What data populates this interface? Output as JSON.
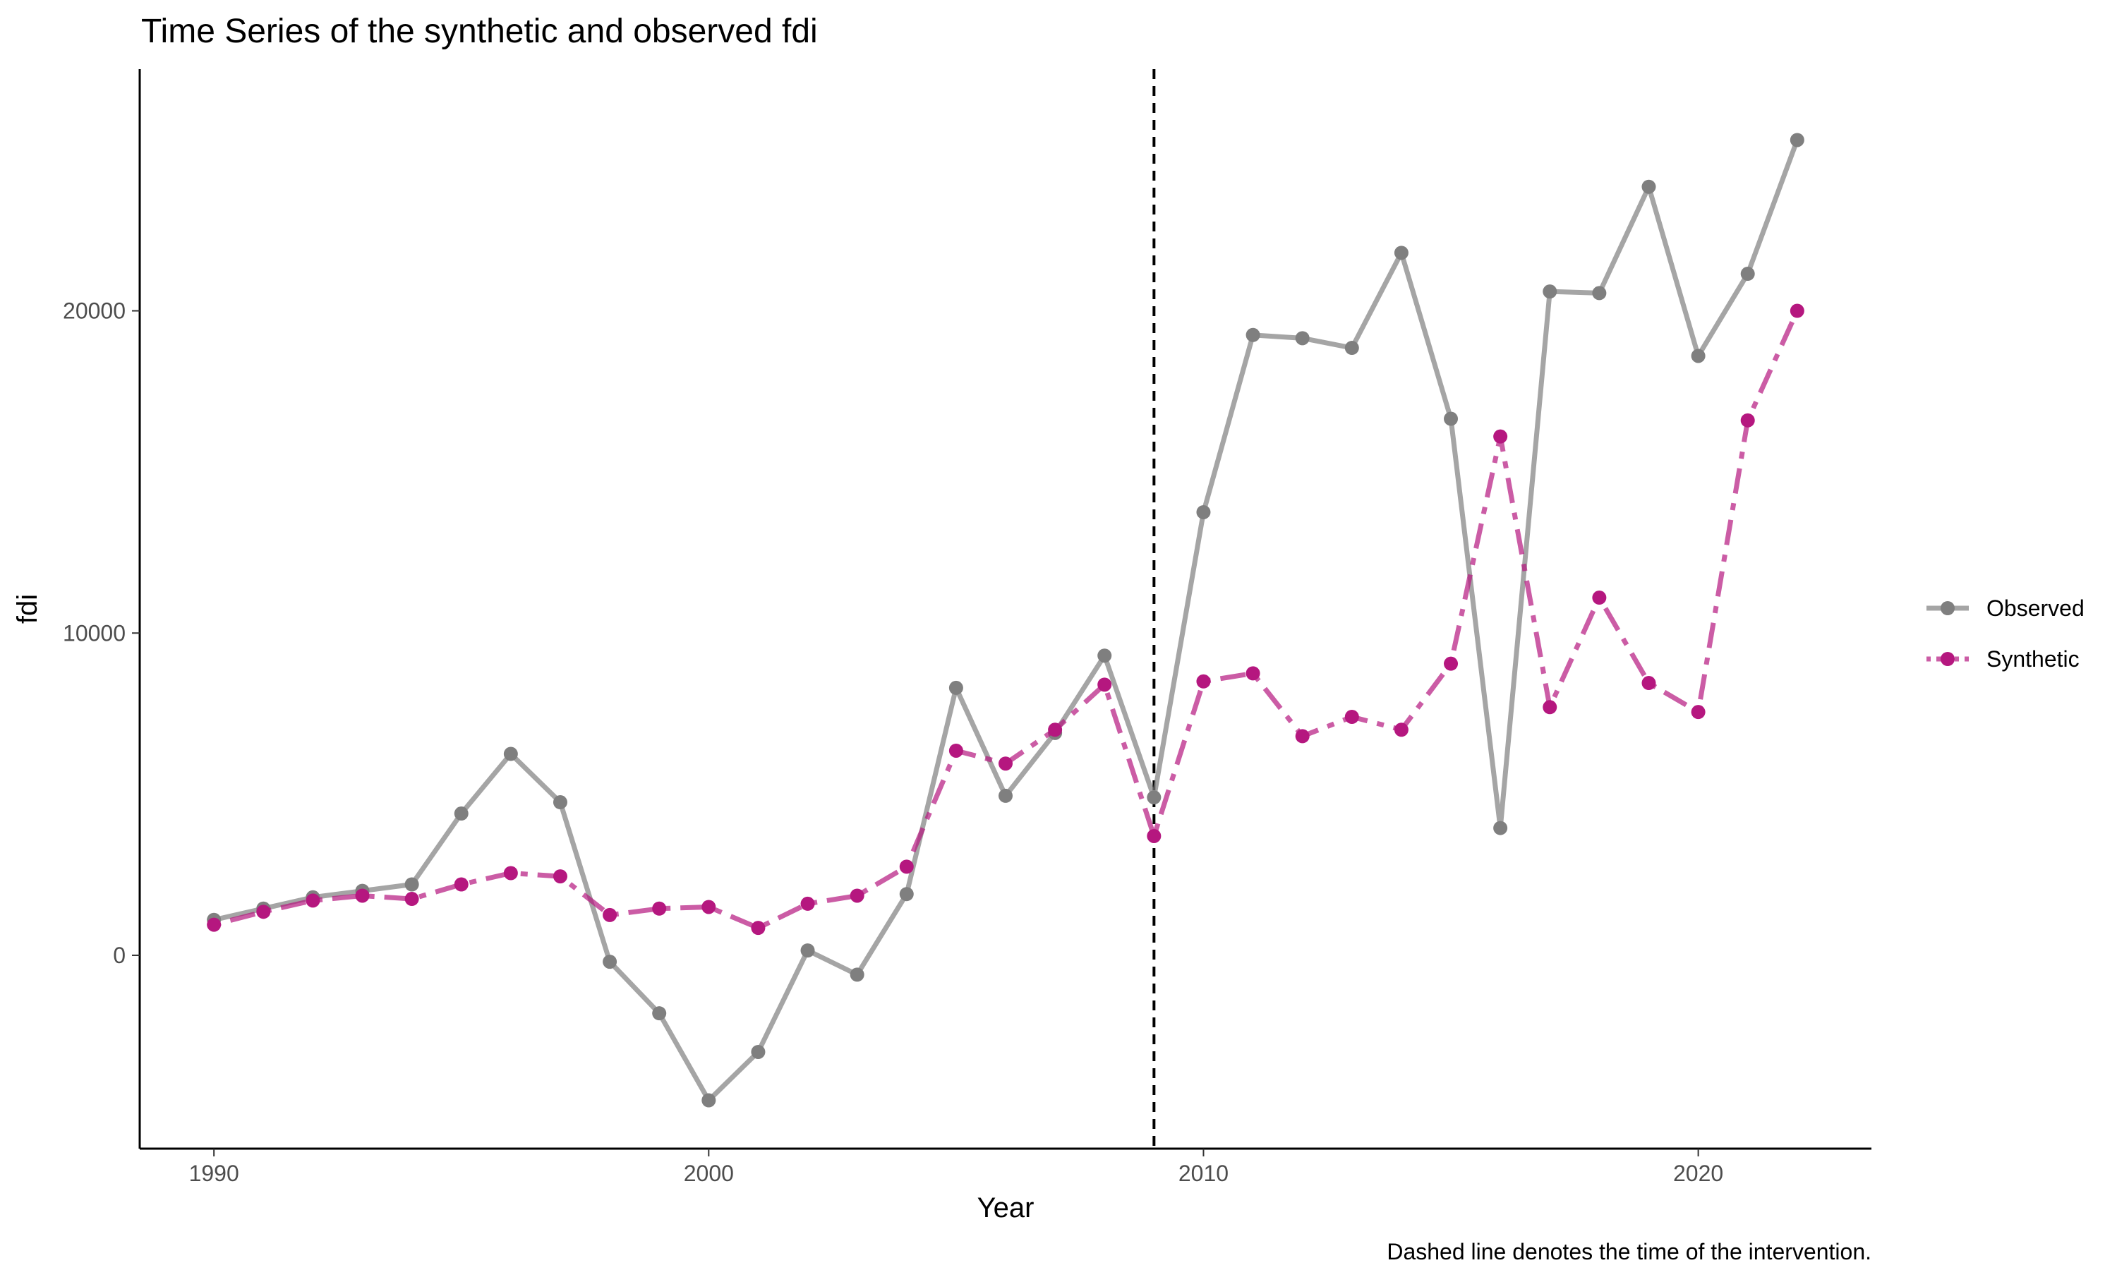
{
  "chart_data": {
    "type": "line",
    "title": "Time Series of the synthetic and observed fdi",
    "xlabel": "Year",
    "ylabel": "fdi",
    "caption": "Dashed line denotes the time of the intervention.",
    "xlim": [
      1988.5,
      2023.5
    ],
    "ylim": [
      -6000,
      27500
    ],
    "x_ticks": [
      1990,
      2000,
      2010,
      2020
    ],
    "y_ticks": [
      0,
      10000,
      20000
    ],
    "x_tick_labels": [
      "1990",
      "2000",
      "2010",
      "2020"
    ],
    "y_tick_labels": [
      "0",
      "10000",
      "20000"
    ],
    "intervention_year": 2009,
    "grid": false,
    "legend_position": "right",
    "x": [
      1990,
      1991,
      1992,
      1993,
      1994,
      1995,
      1996,
      1997,
      1998,
      1999,
      2000,
      2001,
      2002,
      2003,
      2004,
      2005,
      2006,
      2007,
      2008,
      2009,
      2010,
      2011,
      2012,
      2013,
      2014,
      2015,
      2016,
      2017,
      2018,
      2019,
      2020,
      2021,
      2022
    ],
    "series": [
      {
        "name": "Observed",
        "color": "#7f7f7f",
        "line_style": "solid",
        "values": [
          1100,
          1450,
          1800,
          2000,
          2200,
          4400,
          6250,
          4750,
          -200,
          -1800,
          -4500,
          -3000,
          150,
          -600,
          1900,
          8300,
          4950,
          6900,
          9300,
          4900,
          13750,
          19250,
          19150,
          18850,
          21800,
          16650,
          3950,
          20600,
          20550,
          23850,
          18600,
          21150,
          25300
        ]
      },
      {
        "name": "Synthetic",
        "color": "#b5177f",
        "line_style": "dashdot",
        "values": [
          950,
          1350,
          1700,
          1850,
          1750,
          2200,
          2550,
          2450,
          1250,
          1450,
          1500,
          850,
          1600,
          1850,
          2750,
          6350,
          5950,
          7000,
          8400,
          3700,
          8500,
          8750,
          6800,
          7400,
          7000,
          9050,
          16100,
          7700,
          11100,
          8450,
          7550,
          16600,
          20000
        ]
      }
    ]
  }
}
